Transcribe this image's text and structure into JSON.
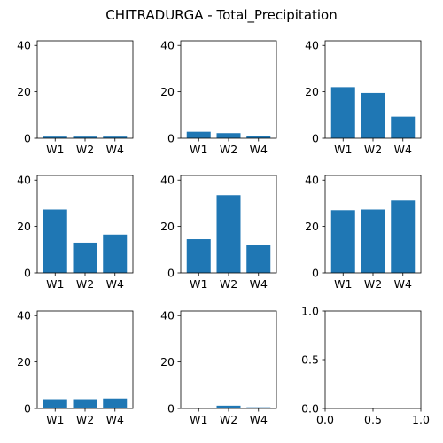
{
  "figure": {
    "title": "CHITRADURGA - Total_Precipitation"
  },
  "chart_data": [
    {
      "type": "bar",
      "categories": [
        "W1",
        "W2",
        "W4"
      ],
      "values": [
        0.7,
        0.7,
        0.7
      ],
      "ylim": [
        0,
        42
      ],
      "yticks": [
        0,
        20,
        40
      ]
    },
    {
      "type": "bar",
      "categories": [
        "W1",
        "W2",
        "W4"
      ],
      "values": [
        2.8,
        2.2,
        0.8
      ],
      "ylim": [
        0,
        42
      ],
      "yticks": [
        0,
        20,
        40
      ]
    },
    {
      "type": "bar",
      "categories": [
        "W1",
        "W2",
        "W4"
      ],
      "values": [
        22.0,
        19.5,
        9.3
      ],
      "ylim": [
        0,
        42
      ],
      "yticks": [
        0,
        20,
        40
      ]
    },
    {
      "type": "bar",
      "categories": [
        "W1",
        "W2",
        "W4"
      ],
      "values": [
        27.3,
        13.0,
        16.5
      ],
      "ylim": [
        0,
        42
      ],
      "yticks": [
        0,
        20,
        40
      ]
    },
    {
      "type": "bar",
      "categories": [
        "W1",
        "W2",
        "W4"
      ],
      "values": [
        14.5,
        33.5,
        12.0
      ],
      "ylim": [
        0,
        42
      ],
      "yticks": [
        0,
        20,
        40
      ]
    },
    {
      "type": "bar",
      "categories": [
        "W1",
        "W2",
        "W4"
      ],
      "values": [
        27.0,
        27.3,
        31.2
      ],
      "ylim": [
        0,
        42
      ],
      "yticks": [
        0,
        20,
        40
      ]
    },
    {
      "type": "bar",
      "categories": [
        "W1",
        "W2",
        "W4"
      ],
      "values": [
        4.0,
        4.0,
        4.3
      ],
      "ylim": [
        0,
        42
      ],
      "yticks": [
        0,
        20,
        40
      ]
    },
    {
      "type": "bar",
      "categories": [
        "W1",
        "W2",
        "W4"
      ],
      "values": [
        0.2,
        1.2,
        0.5
      ],
      "ylim": [
        0,
        42
      ],
      "yticks": [
        0,
        20,
        40
      ]
    },
    {
      "type": "empty",
      "xlim": [
        0.0,
        1.0
      ],
      "ylim": [
        0.0,
        1.0
      ],
      "xticks": [
        "0.0",
        "0.5",
        "1.0"
      ],
      "yticks": [
        "0.0",
        "0.5",
        "1.0"
      ]
    }
  ],
  "colors": {
    "bar": "#1f77b4",
    "axis": "#000000"
  }
}
